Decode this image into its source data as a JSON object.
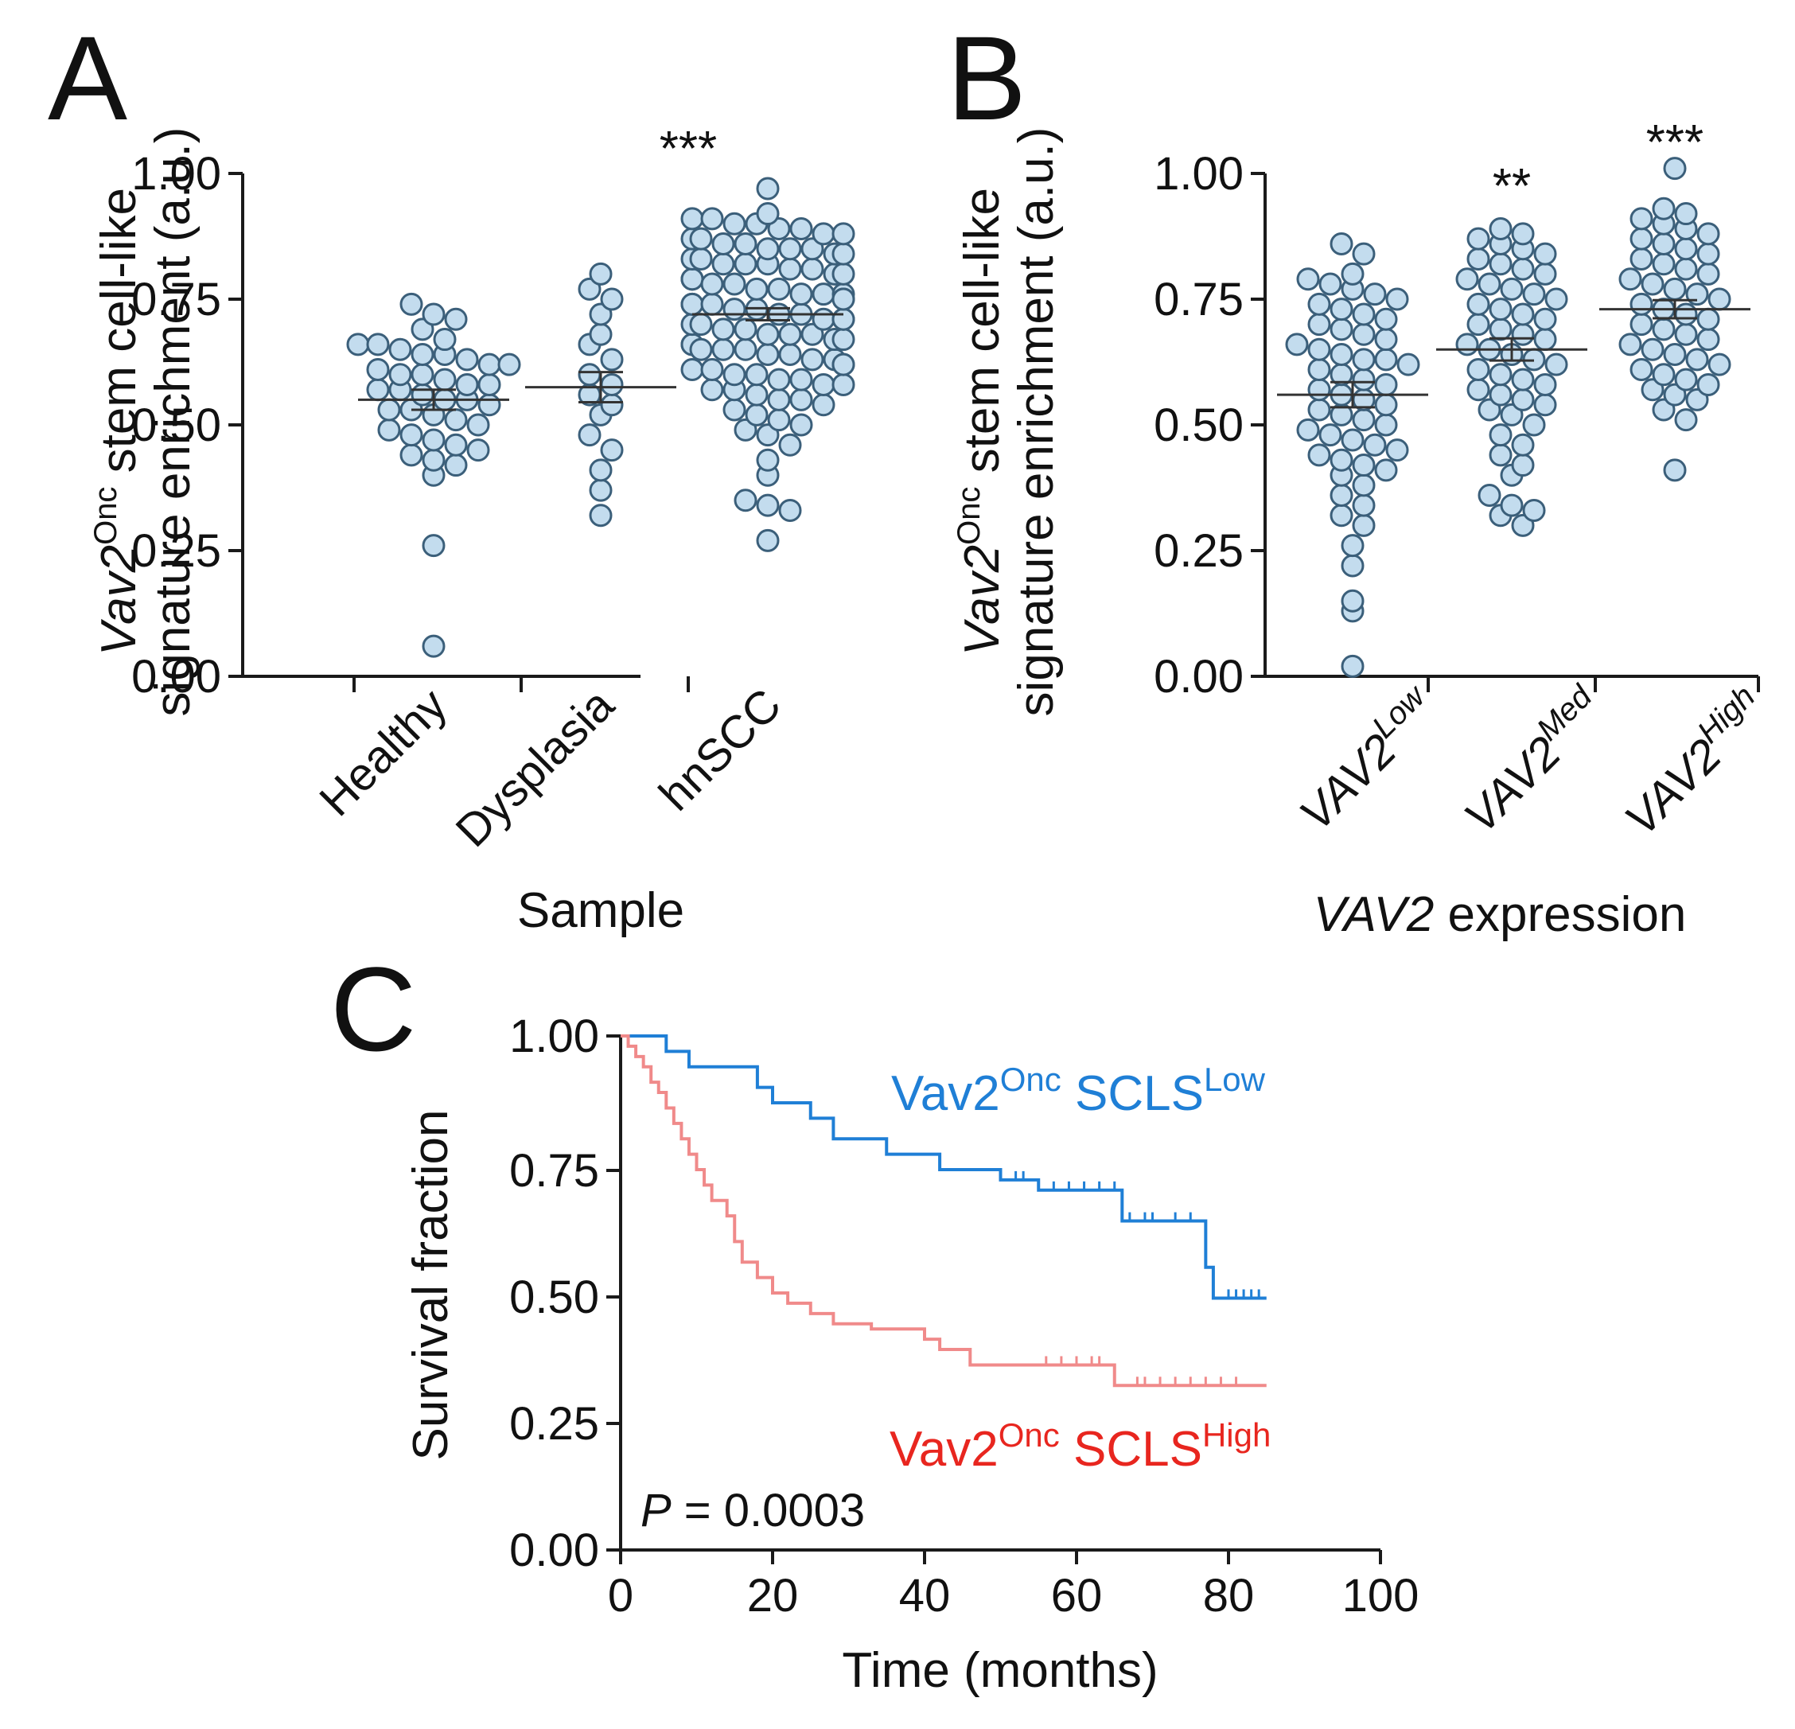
{
  "panels": {
    "A": {
      "letter": "A"
    },
    "B": {
      "letter": "B"
    },
    "C": {
      "letter": "C"
    }
  },
  "chart_data": [
    {
      "panel": "A",
      "type": "scatter",
      "title": "",
      "xlabel": "Sample",
      "ylabel_line1_italic": "Vav2",
      "ylabel_line1_sup": "Onc",
      "ylabel_line1_rest": " stem cell-like",
      "ylabel_line2": "signature enrichment (a.u.)",
      "ylim": [
        0,
        1
      ],
      "yticks": [
        "0.00",
        "0.25",
        "0.50",
        "0.75",
        "1.00"
      ],
      "categories": [
        "Healthy",
        "Dysplasia",
        "hnSCC"
      ],
      "significance": [
        "",
        "",
        "***"
      ],
      "means": [
        0.55,
        0.575,
        0.72
      ],
      "sem": [
        0.02,
        0.03,
        0.012
      ],
      "series": [
        {
          "name": "Healthy",
          "values": [
            0.74,
            0.72,
            0.71,
            0.69,
            0.67,
            0.66,
            0.66,
            0.65,
            0.64,
            0.64,
            0.63,
            0.62,
            0.62,
            0.61,
            0.6,
            0.6,
            0.59,
            0.58,
            0.58,
            0.57,
            0.57,
            0.56,
            0.55,
            0.55,
            0.54,
            0.53,
            0.53,
            0.52,
            0.51,
            0.5,
            0.49,
            0.48,
            0.47,
            0.46,
            0.45,
            0.44,
            0.43,
            0.42,
            0.4,
            0.26,
            0.06
          ]
        },
        {
          "name": "Dysplasia",
          "values": [
            0.8,
            0.77,
            0.75,
            0.72,
            0.68,
            0.66,
            0.63,
            0.6,
            0.58,
            0.56,
            0.54,
            0.52,
            0.48,
            0.45,
            0.41,
            0.37,
            0.32
          ]
        },
        {
          "name": "hnSCC",
          "values": [
            0.97,
            0.92,
            0.91,
            0.91,
            0.9,
            0.9,
            0.89,
            0.89,
            0.88,
            0.88,
            0.87,
            0.87,
            0.86,
            0.86,
            0.85,
            0.85,
            0.85,
            0.84,
            0.84,
            0.83,
            0.83,
            0.82,
            0.82,
            0.82,
            0.81,
            0.81,
            0.8,
            0.8,
            0.79,
            0.79,
            0.79,
            0.78,
            0.78,
            0.77,
            0.77,
            0.76,
            0.76,
            0.76,
            0.75,
            0.75,
            0.74,
            0.74,
            0.74,
            0.73,
            0.73,
            0.72,
            0.72,
            0.71,
            0.71,
            0.71,
            0.7,
            0.7,
            0.69,
            0.69,
            0.68,
            0.68,
            0.68,
            0.67,
            0.67,
            0.66,
            0.66,
            0.65,
            0.65,
            0.65,
            0.64,
            0.64,
            0.63,
            0.63,
            0.62,
            0.62,
            0.61,
            0.61,
            0.6,
            0.6,
            0.59,
            0.59,
            0.58,
            0.58,
            0.57,
            0.57,
            0.56,
            0.55,
            0.55,
            0.54,
            0.53,
            0.52,
            0.51,
            0.5,
            0.49,
            0.48,
            0.46,
            0.43,
            0.4,
            0.35,
            0.34,
            0.33,
            0.27
          ]
        }
      ]
    },
    {
      "panel": "B",
      "type": "scatter",
      "title": "",
      "xlabel_italic": "VAV2",
      "xlabel_rest": " expression",
      "ylabel_line1_italic": "Vav2",
      "ylabel_line1_sup": "Onc",
      "ylabel_line1_rest": " stem cell-like",
      "ylabel_line2": "signature enrichment (a.u.)",
      "ylim": [
        0,
        1
      ],
      "yticks": [
        "0.00",
        "0.25",
        "0.50",
        "0.75",
        "1.00"
      ],
      "categories": [
        {
          "base": "VAV2",
          "sup": "Low"
        },
        {
          "base": "VAV2",
          "sup": "Med"
        },
        {
          "base": "VAV2",
          "sup": "High"
        }
      ],
      "significance": [
        "",
        "**",
        "***"
      ],
      "means": [
        0.56,
        0.65,
        0.73
      ],
      "sem": [
        0.025,
        0.022,
        0.018
      ],
      "series": [
        {
          "name": "VAV2 Low",
          "values": [
            0.86,
            0.84,
            0.8,
            0.79,
            0.78,
            0.77,
            0.76,
            0.75,
            0.74,
            0.73,
            0.72,
            0.71,
            0.7,
            0.69,
            0.68,
            0.67,
            0.66,
            0.65,
            0.64,
            0.63,
            0.63,
            0.62,
            0.61,
            0.6,
            0.59,
            0.58,
            0.57,
            0.56,
            0.55,
            0.54,
            0.53,
            0.52,
            0.51,
            0.5,
            0.49,
            0.48,
            0.47,
            0.46,
            0.45,
            0.44,
            0.43,
            0.42,
            0.41,
            0.4,
            0.38,
            0.36,
            0.34,
            0.32,
            0.3,
            0.26,
            0.22,
            0.15,
            0.13,
            0.02
          ]
        },
        {
          "name": "VAV2 Med",
          "values": [
            0.89,
            0.88,
            0.87,
            0.86,
            0.85,
            0.84,
            0.83,
            0.82,
            0.81,
            0.8,
            0.79,
            0.78,
            0.77,
            0.76,
            0.75,
            0.74,
            0.73,
            0.72,
            0.71,
            0.7,
            0.69,
            0.68,
            0.67,
            0.66,
            0.65,
            0.64,
            0.63,
            0.62,
            0.61,
            0.6,
            0.59,
            0.58,
            0.57,
            0.56,
            0.55,
            0.54,
            0.53,
            0.52,
            0.5,
            0.48,
            0.46,
            0.44,
            0.42,
            0.4,
            0.36,
            0.34,
            0.33,
            0.32,
            0.3
          ]
        },
        {
          "name": "VAV2 High",
          "values": [
            1.01,
            0.93,
            0.92,
            0.91,
            0.9,
            0.89,
            0.88,
            0.87,
            0.86,
            0.85,
            0.84,
            0.83,
            0.82,
            0.81,
            0.8,
            0.79,
            0.78,
            0.77,
            0.76,
            0.75,
            0.74,
            0.73,
            0.72,
            0.71,
            0.7,
            0.69,
            0.68,
            0.67,
            0.66,
            0.65,
            0.64,
            0.63,
            0.62,
            0.61,
            0.6,
            0.59,
            0.58,
            0.57,
            0.56,
            0.55,
            0.53,
            0.51,
            0.41
          ]
        }
      ]
    },
    {
      "panel": "C",
      "type": "line",
      "subtype": "kaplan-meier",
      "xlabel": "Time (months)",
      "ylabel": "Survival fraction",
      "xlim": [
        0,
        100
      ],
      "ylim": [
        0,
        1
      ],
      "xticks": [
        "0",
        "20",
        "40",
        "60",
        "80",
        "100"
      ],
      "yticks": [
        "0.00",
        "0.25",
        "0.50",
        "0.75",
        "1.00"
      ],
      "pvalue_italic": "P",
      "pvalue_text": " = 0.0003",
      "series": [
        {
          "name_base": "Vav2",
          "name_sup1": "Onc",
          "name_mid": " SCLS",
          "name_sup2": "Low",
          "color": "#1f7fd6",
          "steps": [
            [
              0,
              1.0
            ],
            [
              6,
              0.97
            ],
            [
              9,
              0.94
            ],
            [
              18,
              0.9
            ],
            [
              20,
              0.87
            ],
            [
              25,
              0.84
            ],
            [
              28,
              0.8
            ],
            [
              35,
              0.77
            ],
            [
              42,
              0.74
            ],
            [
              50,
              0.72
            ],
            [
              55,
              0.7
            ],
            [
              66,
              0.64
            ],
            [
              77,
              0.55
            ],
            [
              78,
              0.49
            ],
            [
              85,
              0.49
            ]
          ],
          "censored": [
            52,
            53,
            57,
            59,
            61,
            63,
            65,
            67,
            69,
            70,
            73,
            75,
            80,
            81,
            82,
            83,
            84
          ]
        },
        {
          "name_base": "Vav2",
          "name_sup1": "Onc",
          "name_mid": " SCLS",
          "name_sup2": "High",
          "color": "#f08a8a",
          "steps": [
            [
              0,
              1.0
            ],
            [
              1,
              0.98
            ],
            [
              2,
              0.96
            ],
            [
              3,
              0.94
            ],
            [
              4,
              0.91
            ],
            [
              5,
              0.89
            ],
            [
              6,
              0.86
            ],
            [
              7,
              0.83
            ],
            [
              8,
              0.8
            ],
            [
              9,
              0.77
            ],
            [
              10,
              0.74
            ],
            [
              11,
              0.71
            ],
            [
              12,
              0.68
            ],
            [
              14,
              0.65
            ],
            [
              15,
              0.6
            ],
            [
              16,
              0.56
            ],
            [
              18,
              0.53
            ],
            [
              20,
              0.5
            ],
            [
              22,
              0.48
            ],
            [
              25,
              0.46
            ],
            [
              28,
              0.44
            ],
            [
              33,
              0.43
            ],
            [
              40,
              0.41
            ],
            [
              42,
              0.39
            ],
            [
              46,
              0.36
            ],
            [
              65,
              0.32
            ],
            [
              85,
              0.32
            ]
          ],
          "censored": [
            56,
            58,
            60,
            62,
            63,
            65,
            68,
            69,
            71,
            73,
            75,
            77,
            79,
            81
          ]
        }
      ]
    }
  ]
}
